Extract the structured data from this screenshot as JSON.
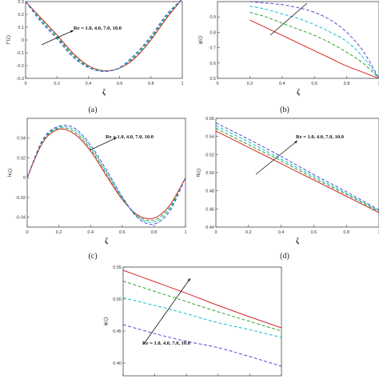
{
  "chart_data": [
    {
      "type": "line",
      "panel_label": "(a)",
      "xlabel": "ζ",
      "ylabel": "f''(ζ)",
      "xlim": [
        0,
        1
      ],
      "ylim": [
        -0.3,
        0.3
      ],
      "yticks": [
        "-0.3",
        "-0.2",
        "-0.1",
        "0",
        "0.1",
        "0.2",
        "0.3"
      ],
      "xticks": [
        "0",
        "0.2",
        "0.4",
        "0.6",
        "0.8",
        "1"
      ],
      "annotation": "Re = 1.0, 4.0, 7.0, 10.0",
      "x": [
        0,
        0.1,
        0.2,
        0.3,
        0.4,
        0.5,
        0.6,
        0.7,
        0.8,
        0.9,
        1.0
      ],
      "series": [
        {
          "color": "#d62728",
          "dash": "solid",
          "values": [
            0.3,
            0.17,
            0.04,
            -0.1,
            -0.2,
            -0.24,
            -0.22,
            -0.14,
            0.0,
            0.17,
            0.32
          ]
        },
        {
          "color": "#2ca02c",
          "dash": "dash",
          "values": [
            0.3,
            0.16,
            0.03,
            -0.11,
            -0.205,
            -0.242,
            -0.22,
            -0.13,
            0.01,
            0.18,
            0.32
          ]
        },
        {
          "color": "#17becf",
          "dash": "dash",
          "values": [
            0.3,
            0.15,
            0.02,
            -0.12,
            -0.21,
            -0.244,
            -0.218,
            -0.12,
            0.02,
            0.19,
            0.32
          ]
        },
        {
          "color": "#4b4bd1",
          "dash": "dash",
          "values": [
            0.3,
            0.14,
            0.01,
            -0.13,
            -0.215,
            -0.246,
            -0.215,
            -0.11,
            0.03,
            0.2,
            0.32
          ]
        }
      ]
    },
    {
      "type": "line",
      "panel_label": "(b)",
      "xlabel": "ζ",
      "ylabel": "g(ζ)",
      "xlim": [
        0,
        1
      ],
      "ylim": [
        0.5,
        1.0
      ],
      "yticks": [
        "0.5",
        "0.6",
        "0.7",
        "0.8",
        "0.9"
      ],
      "xticks": [
        "0",
        "0.2",
        "0.4",
        "0.6",
        "0.8",
        "1"
      ],
      "annotation": "",
      "x": [
        0.2,
        0.3,
        0.4,
        0.5,
        0.6,
        0.7,
        0.8,
        0.9,
        1.0
      ],
      "series": [
        {
          "color": "#d62728",
          "dash": "solid",
          "values": [
            0.88,
            0.83,
            0.78,
            0.73,
            0.68,
            0.63,
            0.58,
            0.54,
            0.5
          ]
        },
        {
          "color": "#2ca02c",
          "dash": "dash",
          "values": [
            0.93,
            0.9,
            0.86,
            0.82,
            0.78,
            0.73,
            0.67,
            0.6,
            0.5
          ]
        },
        {
          "color": "#17becf",
          "dash": "dash",
          "values": [
            0.97,
            0.95,
            0.92,
            0.89,
            0.85,
            0.8,
            0.74,
            0.64,
            0.5
          ]
        },
        {
          "color": "#4b4bd1",
          "dash": "dash",
          "values": [
            1.0,
            0.99,
            0.98,
            0.96,
            0.93,
            0.88,
            0.8,
            0.68,
            0.5
          ]
        }
      ]
    },
    {
      "type": "line",
      "panel_label": "(c)",
      "xlabel": "ζ",
      "ylabel": "h(ζ)",
      "xlim": [
        0,
        1
      ],
      "ylim": [
        -0.05,
        0.06
      ],
      "yticks": [
        "-0.04",
        "-0.02",
        "0",
        "0.02",
        "0.04"
      ],
      "xticks": [
        "0",
        "0.2",
        "0.4",
        "0.6",
        "0.8",
        "1"
      ],
      "annotation": "Re = 1.0, 4.0, 7.0, 10.0",
      "x": [
        0,
        0.1,
        0.2,
        0.3,
        0.4,
        0.5,
        0.6,
        0.7,
        0.8,
        0.9,
        1.0
      ],
      "series": [
        {
          "color": "#d62728",
          "dash": "solid",
          "values": [
            0,
            0.036,
            0.049,
            0.044,
            0.027,
            0.002,
            -0.022,
            -0.038,
            -0.041,
            -0.028,
            0
          ]
        },
        {
          "color": "#2ca02c",
          "dash": "dash",
          "values": [
            0,
            0.037,
            0.05,
            0.046,
            0.029,
            0.004,
            -0.021,
            -0.039,
            -0.043,
            -0.03,
            0
          ]
        },
        {
          "color": "#17becf",
          "dash": "dash",
          "values": [
            0,
            0.038,
            0.051,
            0.048,
            0.031,
            0.006,
            -0.02,
            -0.04,
            -0.045,
            -0.032,
            0
          ]
        },
        {
          "color": "#4b4bd1",
          "dash": "dash",
          "values": [
            0,
            0.039,
            0.052,
            0.05,
            0.033,
            0.008,
            -0.019,
            -0.041,
            -0.047,
            -0.034,
            0
          ]
        }
      ]
    },
    {
      "type": "line",
      "panel_label": "(d)",
      "xlabel": "ζ",
      "ylabel": "θ(ζ)",
      "xlim": [
        0,
        1
      ],
      "ylim": [
        0.44,
        0.56
      ],
      "yticks": [
        "0.44",
        "0.46",
        "0.48",
        "0.50",
        "0.52",
        "0.54",
        "0.56"
      ],
      "xticks": [
        "0",
        "0.2",
        "0.4",
        "0.6",
        "0.8",
        "1"
      ],
      "annotation": "Re = 1.0, 4.0, 7.0, 10.0",
      "x": [
        0,
        0.2,
        0.4,
        0.6,
        0.8,
        1.0
      ],
      "series": [
        {
          "color": "#d62728",
          "dash": "solid",
          "values": [
            0.546,
            0.528,
            0.51,
            0.492,
            0.474,
            0.456
          ]
        },
        {
          "color": "#2ca02c",
          "dash": "dash",
          "values": [
            0.549,
            0.531,
            0.513,
            0.494,
            0.476,
            0.457
          ]
        },
        {
          "color": "#17becf",
          "dash": "dash",
          "values": [
            0.552,
            0.534,
            0.515,
            0.496,
            0.477,
            0.458
          ]
        },
        {
          "color": "#4b4bd1",
          "dash": "dash",
          "values": [
            0.555,
            0.537,
            0.518,
            0.498,
            0.479,
            0.459
          ]
        }
      ]
    },
    {
      "type": "line",
      "panel_label": "",
      "xlabel": "",
      "ylabel": "ϕ(ζ)",
      "xlim": [
        0,
        1
      ],
      "ylim": [
        0.38,
        0.55
      ],
      "yticks": [
        "0.40",
        "0.45",
        "0.50",
        "0.55"
      ],
      "xticks": [
        "0",
        "0.2",
        "0.4",
        "0.6",
        "0.8",
        "1"
      ],
      "annotation": "Re = 1.0, 4.0, 7.0, 10.0",
      "x": [
        0,
        0.2,
        0.4,
        0.6,
        0.8,
        1.0
      ],
      "series": [
        {
          "color": "#d62728",
          "dash": "solid",
          "values": [
            0.545,
            0.527,
            0.509,
            0.49,
            0.472,
            0.455
          ]
        },
        {
          "color": "#2ca02c",
          "dash": "dash",
          "values": [
            0.528,
            0.512,
            0.496,
            0.48,
            0.465,
            0.45
          ]
        },
        {
          "color": "#17becf",
          "dash": "dash",
          "values": [
            0.502,
            0.49,
            0.477,
            0.463,
            0.452,
            0.44
          ]
        },
        {
          "color": "#4b4bd1",
          "dash": "dash",
          "values": [
            0.46,
            0.446,
            0.434,
            0.424,
            0.41,
            0.395
          ]
        }
      ]
    }
  ]
}
